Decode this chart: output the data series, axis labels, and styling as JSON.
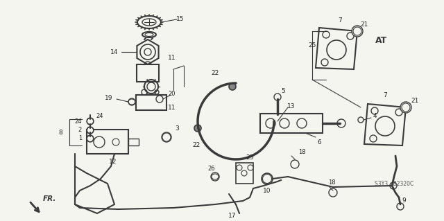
{
  "background_color": "#f5f5f0",
  "diagram_color": "#3a3a3a",
  "figsize": [
    6.4,
    3.19
  ],
  "dpi": 100,
  "ref_code": "S3Y3 - B2320C",
  "arrow_label": "FR."
}
